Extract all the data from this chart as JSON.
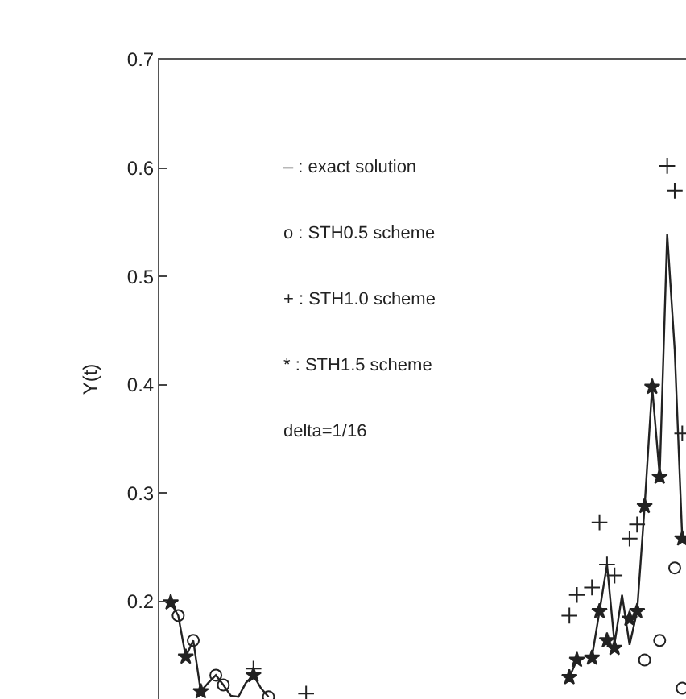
{
  "chart_data": {
    "type": "line",
    "ylabel": "Y(t)",
    "ylim": [
      0.11,
      0.7
    ],
    "yticks": [
      0.2,
      0.3,
      0.4,
      0.5,
      0.6,
      0.7
    ],
    "tick_labels": "y",
    "grid": false,
    "categories": [
      null,
      null,
      null,
      null,
      null,
      null,
      null,
      null,
      null,
      null,
      null,
      null,
      null,
      null,
      null,
      null,
      null,
      null,
      null,
      null,
      null,
      null,
      null,
      null,
      null,
      null,
      null,
      null,
      null,
      null,
      null,
      null,
      null,
      null,
      null,
      null,
      null,
      null,
      null,
      null,
      null,
      null,
      null,
      null,
      null,
      null,
      null,
      null,
      null,
      null,
      null,
      null,
      null,
      null,
      null,
      null,
      null,
      null,
      null,
      null,
      null,
      null,
      null,
      null,
      null,
      null,
      null,
      null,
      null,
      null
    ],
    "annotations": [
      "– : exact solution",
      "o : STH0.5 scheme",
      "+ : STH1.0 scheme",
      "* : STH1.5 scheme",
      "delta=1/16"
    ],
    "series": [
      {
        "color": "#222222",
        "marker": "none",
        "values": [
          null,
          0.199,
          0.187,
          0.149,
          0.164,
          0.117,
          0.125,
          0.132,
          0.123,
          0.113,
          0.112,
          0.125,
          0.132,
          0.12,
          0.112,
          null,
          null,
          null,
          null,
          null,
          null,
          null,
          null,
          null,
          null,
          null,
          null,
          null,
          null,
          null,
          null,
          null,
          null,
          null,
          null,
          null,
          null,
          null,
          null,
          null,
          null,
          null,
          null,
          null,
          null,
          null,
          null,
          null,
          null,
          null,
          null,
          null,
          null,
          null,
          0.13,
          0.146,
          null,
          0.149,
          0.191,
          0.234,
          0.161,
          0.206,
          0.16,
          0.191,
          0.288,
          0.398,
          0.316,
          0.539,
          0.432,
          0.258
        ]
      },
      {
        "type": "scatter",
        "color": "#222222",
        "marker": "circle",
        "values": [
          null,
          null,
          0.187,
          null,
          0.164,
          null,
          null,
          0.132,
          0.123,
          null,
          null,
          null,
          null,
          null,
          0.112,
          null,
          null,
          null,
          null,
          null,
          null,
          null,
          null,
          null,
          null,
          null,
          null,
          null,
          null,
          null,
          null,
          null,
          null,
          null,
          null,
          null,
          null,
          null,
          null,
          null,
          null,
          null,
          null,
          null,
          null,
          null,
          null,
          null,
          null,
          null,
          null,
          null,
          null,
          null,
          null,
          null,
          null,
          null,
          null,
          null,
          null,
          null,
          null,
          null,
          0.146,
          null,
          0.164,
          null,
          0.231,
          0.12
        ]
      },
      {
        "type": "scatter",
        "color": "#222222",
        "marker": "cross",
        "values": [
          null,
          null,
          null,
          null,
          null,
          null,
          null,
          null,
          null,
          null,
          null,
          null,
          0.138,
          null,
          null,
          null,
          null,
          null,
          null,
          0.115,
          null,
          null,
          null,
          null,
          null,
          null,
          null,
          null,
          null,
          null,
          null,
          null,
          null,
          null,
          null,
          null,
          null,
          null,
          null,
          null,
          null,
          null,
          null,
          null,
          null,
          null,
          null,
          null,
          null,
          null,
          null,
          null,
          null,
          null,
          0.187,
          0.206,
          null,
          0.213,
          0.273,
          0.234,
          0.224,
          null,
          0.258,
          0.271,
          null,
          null,
          null,
          0.602,
          0.579,
          0.355
        ]
      },
      {
        "type": "scatter",
        "color": "#222222",
        "marker": "star",
        "values": [
          null,
          0.199,
          null,
          0.149,
          null,
          0.117,
          null,
          null,
          null,
          null,
          null,
          null,
          0.132,
          null,
          null,
          null,
          null,
          null,
          null,
          null,
          null,
          null,
          null,
          null,
          null,
          null,
          null,
          null,
          null,
          null,
          null,
          null,
          null,
          null,
          null,
          null,
          null,
          null,
          null,
          null,
          null,
          null,
          null,
          null,
          null,
          null,
          null,
          null,
          null,
          null,
          null,
          null,
          null,
          null,
          0.13,
          0.146,
          null,
          0.148,
          0.191,
          0.164,
          0.157,
          null,
          0.184,
          0.191,
          0.288,
          0.398,
          0.315,
          null,
          null,
          0.258
        ]
      }
    ]
  }
}
